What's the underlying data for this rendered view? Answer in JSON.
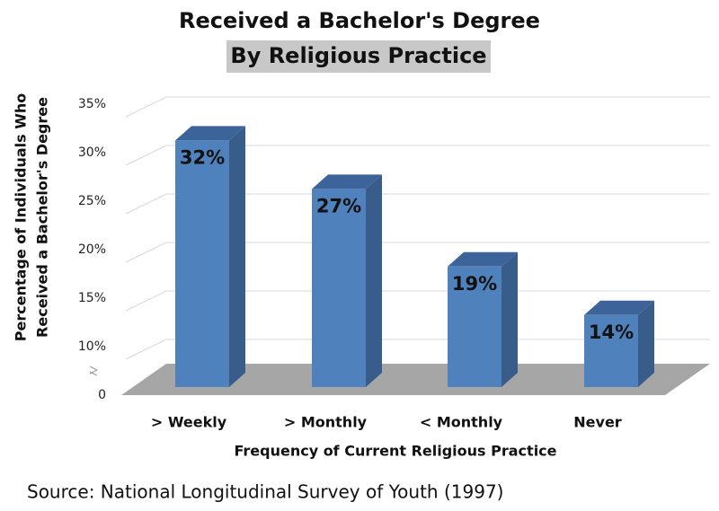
{
  "chart_data": {
    "type": "bar3d",
    "title": "Received a Bachelor's Degree",
    "subtitle": "By Religious Practice",
    "ylabel": [
      "Percentage of Individuals Who",
      "Received a Bachelor's Degree"
    ],
    "xlabel": "Frequency of Current Religious Practice",
    "source": "Source:  National Longitudinal Survey of Youth (1997)",
    "categories": [
      "> Weekly",
      "> Monthly",
      "< Monthly",
      "Never"
    ],
    "values": [
      32,
      27,
      19,
      14
    ],
    "value_labels": [
      "32%",
      "27%",
      "19%",
      "14%"
    ],
    "color": "#4f81bd",
    "ylim": [
      0,
      35
    ],
    "yticks": [
      0,
      {
        "value": 10,
        "label": "10%"
      },
      {
        "value": 15,
        "label": "15%"
      },
      {
        "value": 20,
        "label": "20%"
      },
      {
        "value": 25,
        "label": "25%"
      },
      {
        "value": 30,
        "label": "30%"
      },
      {
        "value": 35,
        "label": "35%"
      }
    ],
    "axis_break": true,
    "grid": true
  }
}
